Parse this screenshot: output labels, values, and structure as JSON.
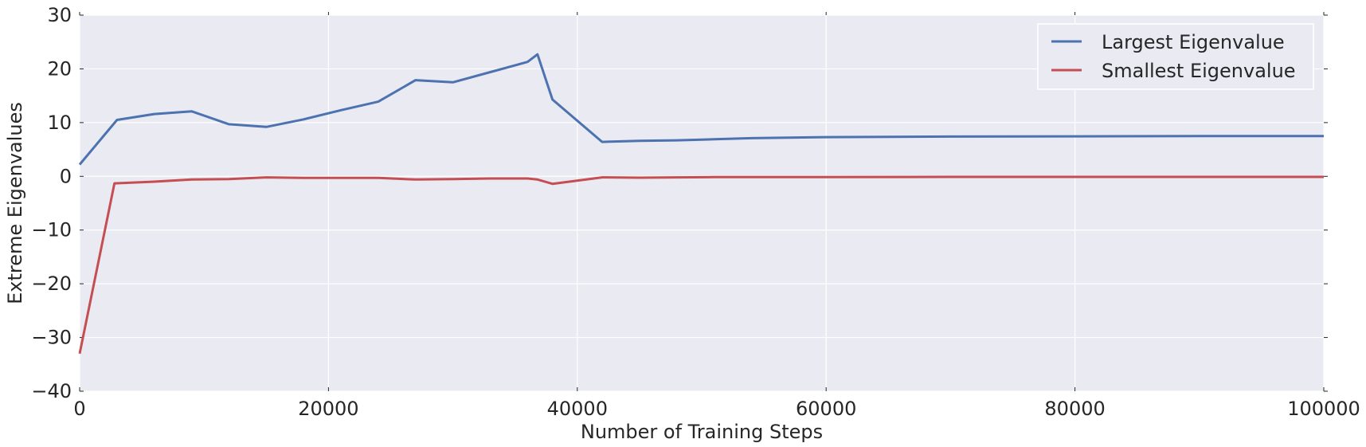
{
  "chart_data": {
    "type": "line",
    "xlabel": "Number of Training Steps",
    "ylabel": "Extreme Eigenvalues",
    "xlim": [
      0,
      100000
    ],
    "ylim": [
      -40,
      30
    ],
    "xticks": [
      0,
      20000,
      40000,
      60000,
      80000,
      100000
    ],
    "yticks": [
      -40,
      -30,
      -20,
      -10,
      0,
      10,
      20,
      30
    ],
    "xtick_labels": [
      "0",
      "20000",
      "40000",
      "60000",
      "80000",
      "100000"
    ],
    "ytick_labels": [
      "−40",
      "−30",
      "−20",
      "−10",
      "0",
      "10",
      "20",
      "30"
    ],
    "grid": true,
    "legend_position": "top-right",
    "series": [
      {
        "name": "Largest Eigenvalue",
        "color": "#4c72b0",
        "x": [
          0,
          3000,
          6000,
          9000,
          12000,
          15000,
          18000,
          21000,
          24000,
          27000,
          30000,
          33000,
          36000,
          36800,
          38000,
          42000,
          45000,
          48000,
          51000,
          54000,
          57000,
          60000,
          70000,
          80000,
          90000,
          100000
        ],
        "y": [
          2.2,
          10.5,
          11.6,
          12.1,
          9.7,
          9.2,
          10.6,
          12.3,
          13.9,
          17.9,
          17.5,
          19.4,
          21.3,
          22.7,
          14.3,
          6.4,
          6.6,
          6.7,
          6.9,
          7.1,
          7.2,
          7.3,
          7.4,
          7.45,
          7.5,
          7.5
        ]
      },
      {
        "name": "Smallest Eigenvalue",
        "color": "#c44e52",
        "x": [
          0,
          2800,
          6000,
          9000,
          12000,
          15000,
          18000,
          21000,
          24000,
          27000,
          30000,
          33000,
          36000,
          36800,
          38000,
          42000,
          45000,
          48000,
          51000,
          60000,
          70000,
          80000,
          90000,
          100000
        ],
        "y": [
          -33.0,
          -1.3,
          -1.0,
          -0.6,
          -0.5,
          -0.2,
          -0.3,
          -0.3,
          -0.3,
          -0.6,
          -0.5,
          -0.4,
          -0.4,
          -0.6,
          -1.4,
          -0.2,
          -0.25,
          -0.2,
          -0.15,
          -0.15,
          -0.1,
          -0.1,
          -0.1,
          -0.1
        ]
      }
    ]
  }
}
